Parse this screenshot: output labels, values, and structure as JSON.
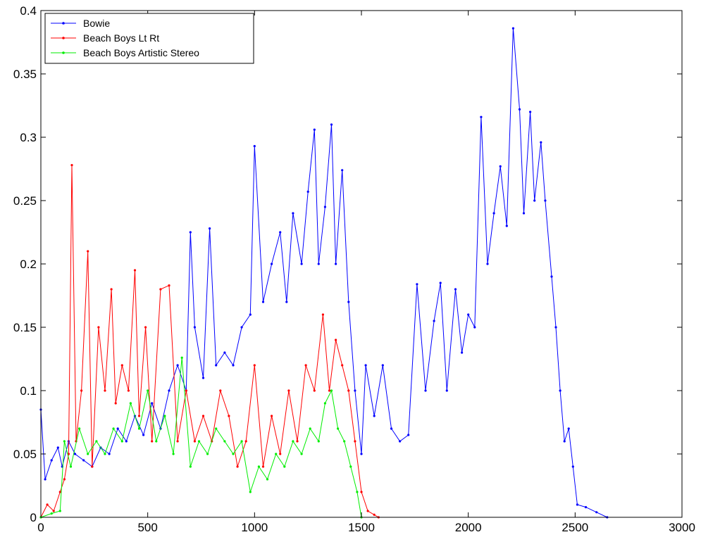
{
  "chart_data": {
    "type": "line",
    "title": "",
    "xlabel": "",
    "ylabel": "",
    "xlim": [
      0,
      3000
    ],
    "ylim": [
      0,
      0.4
    ],
    "x_ticks": [
      0,
      500,
      1000,
      1500,
      2000,
      2500,
      3000
    ],
    "x_tick_labels": [
      "0",
      "500",
      "1000",
      "1500",
      "2000",
      "2500",
      "3000"
    ],
    "y_ticks": [
      0,
      0.05,
      0.1,
      0.15,
      0.2,
      0.25,
      0.3,
      0.35,
      0.4
    ],
    "y_tick_labels": [
      "0",
      "0.05",
      "0.1",
      "0.15",
      "0.2",
      "0.25",
      "0.3",
      "0.35",
      "0.4"
    ],
    "grid": false,
    "legend_position": "top-left",
    "series": [
      {
        "name": "Bowie",
        "color": "#0000ff",
        "x": [
          0,
          20,
          50,
          80,
          100,
          130,
          160,
          200,
          240,
          280,
          320,
          360,
          400,
          440,
          480,
          520,
          560,
          600,
          640,
          680,
          700,
          720,
          760,
          790,
          820,
          860,
          900,
          940,
          980,
          1000,
          1040,
          1080,
          1120,
          1150,
          1180,
          1220,
          1250,
          1280,
          1300,
          1330,
          1360,
          1380,
          1410,
          1440,
          1470,
          1500,
          1520,
          1560,
          1600,
          1640,
          1680,
          1720,
          1760,
          1800,
          1840,
          1870,
          1900,
          1940,
          1970,
          2000,
          2030,
          2060,
          2090,
          2120,
          2150,
          2180,
          2210,
          2240,
          2260,
          2290,
          2310,
          2340,
          2360,
          2390,
          2410,
          2430,
          2450,
          2470,
          2490,
          2510,
          2550,
          2600,
          2650
        ],
        "values": [
          0.085,
          0.03,
          0.045,
          0.055,
          0.04,
          0.06,
          0.05,
          0.045,
          0.04,
          0.055,
          0.05,
          0.07,
          0.06,
          0.08,
          0.065,
          0.09,
          0.07,
          0.1,
          0.12,
          0.1,
          0.225,
          0.15,
          0.11,
          0.228,
          0.12,
          0.13,
          0.12,
          0.15,
          0.16,
          0.293,
          0.17,
          0.2,
          0.225,
          0.17,
          0.24,
          0.2,
          0.257,
          0.306,
          0.2,
          0.245,
          0.31,
          0.2,
          0.274,
          0.17,
          0.1,
          0.05,
          0.12,
          0.08,
          0.12,
          0.07,
          0.06,
          0.065,
          0.184,
          0.1,
          0.155,
          0.185,
          0.1,
          0.18,
          0.13,
          0.16,
          0.15,
          0.316,
          0.2,
          0.24,
          0.277,
          0.23,
          0.386,
          0.322,
          0.24,
          0.32,
          0.25,
          0.296,
          0.25,
          0.19,
          0.15,
          0.1,
          0.06,
          0.07,
          0.04,
          0.01,
          0.008,
          0.004,
          0.0
        ]
      },
      {
        "name": "Beach Boys Lt Rt",
        "color": "#ff0000",
        "x": [
          0,
          30,
          60,
          90,
          110,
          130,
          145,
          165,
          190,
          220,
          240,
          270,
          300,
          330,
          350,
          380,
          410,
          440,
          460,
          490,
          520,
          560,
          600,
          640,
          680,
          720,
          760,
          800,
          840,
          880,
          920,
          960,
          1000,
          1040,
          1080,
          1120,
          1160,
          1200,
          1240,
          1280,
          1320,
          1350,
          1380,
          1410,
          1440,
          1470,
          1500,
          1530,
          1560,
          1580
        ],
        "values": [
          0.0,
          0.01,
          0.005,
          0.02,
          0.03,
          0.05,
          0.278,
          0.06,
          0.1,
          0.21,
          0.04,
          0.15,
          0.1,
          0.18,
          0.09,
          0.12,
          0.1,
          0.195,
          0.08,
          0.15,
          0.06,
          0.18,
          0.183,
          0.06,
          0.1,
          0.06,
          0.08,
          0.06,
          0.1,
          0.08,
          0.04,
          0.06,
          0.12,
          0.04,
          0.08,
          0.05,
          0.1,
          0.06,
          0.12,
          0.1,
          0.16,
          0.1,
          0.14,
          0.12,
          0.1,
          0.06,
          0.02,
          0.005,
          0.002,
          0.0
        ]
      },
      {
        "name": "Beach Boys Artistic Stereo",
        "color": "#00ee00",
        "x": [
          0,
          50,
          90,
          110,
          140,
          180,
          220,
          260,
          300,
          340,
          380,
          420,
          460,
          500,
          540,
          580,
          620,
          660,
          700,
          740,
          780,
          820,
          860,
          900,
          940,
          980,
          1020,
          1060,
          1100,
          1140,
          1180,
          1220,
          1260,
          1300,
          1330,
          1360,
          1390,
          1420,
          1450,
          1480,
          1500
        ],
        "values": [
          0.0,
          0.003,
          0.005,
          0.06,
          0.04,
          0.07,
          0.05,
          0.06,
          0.05,
          0.07,
          0.06,
          0.09,
          0.07,
          0.1,
          0.06,
          0.08,
          0.05,
          0.126,
          0.04,
          0.06,
          0.05,
          0.07,
          0.06,
          0.05,
          0.06,
          0.02,
          0.04,
          0.03,
          0.05,
          0.04,
          0.06,
          0.05,
          0.07,
          0.06,
          0.09,
          0.1,
          0.07,
          0.06,
          0.04,
          0.02,
          0.0
        ]
      }
    ]
  }
}
